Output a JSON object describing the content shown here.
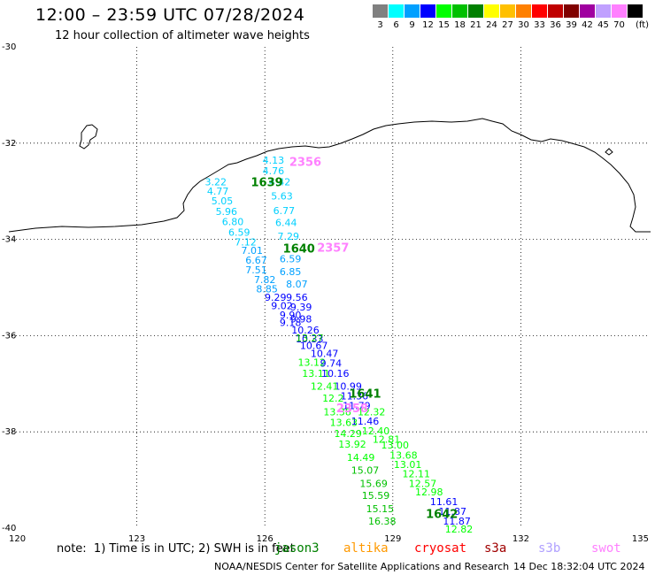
{
  "header": {
    "title": "12:00 – 23:59 UTC 07/28/2024",
    "subtitle": "12 hour collection of altimeter wave heights"
  },
  "color_scale": {
    "unit": "(ft)",
    "bins": [
      {
        "label": "3",
        "color": "#808080"
      },
      {
        "label": "6",
        "color": "#00ffff"
      },
      {
        "label": "9",
        "color": "#00a0ff"
      },
      {
        "label": "12",
        "color": "#0000ff"
      },
      {
        "label": "15",
        "color": "#00ff00"
      },
      {
        "label": "18",
        "color": "#00c000"
      },
      {
        "label": "21",
        "color": "#008000"
      },
      {
        "label": "24",
        "color": "#ffff00"
      },
      {
        "label": "27",
        "color": "#ffc000"
      },
      {
        "label": "30",
        "color": "#ff8000"
      },
      {
        "label": "33",
        "color": "#ff0000"
      },
      {
        "label": "36",
        "color": "#c00000"
      },
      {
        "label": "39",
        "color": "#800000"
      },
      {
        "label": "42",
        "color": "#a000a0"
      },
      {
        "label": "45",
        "color": "#c0a0ff"
      },
      {
        "label": "70",
        "color": "#ff80ff"
      },
      {
        "label": "",
        "color": "#000000"
      }
    ]
  },
  "map": {
    "lon_ticks": [
      {
        "label": "120",
        "lon": 120
      },
      {
        "label": "123",
        "lon": 123
      },
      {
        "label": "126",
        "lon": 126
      },
      {
        "label": "129",
        "lon": 129
      },
      {
        "label": "132",
        "lon": 132
      },
      {
        "label": "135",
        "lon": 135
      }
    ],
    "lat_ticks": [
      {
        "label": "-30",
        "lat": -30
      },
      {
        "label": "-32",
        "lat": -32
      },
      {
        "label": "-34",
        "lat": -34
      },
      {
        "label": "-36",
        "lat": -36
      },
      {
        "label": "-38",
        "lat": -38
      },
      {
        "label": "-40",
        "lat": -40
      }
    ],
    "time_labels": [
      {
        "text": "1639",
        "lon": 126.05,
        "lat": -32.8,
        "color": "#008000"
      },
      {
        "text": "2356",
        "lon": 126.95,
        "lat": -32.38,
        "color": "#ff80ff"
      },
      {
        "text": "1640",
        "lon": 126.8,
        "lat": -34.18,
        "color": "#008000"
      },
      {
        "text": "2357",
        "lon": 127.6,
        "lat": -34.16,
        "color": "#ff80ff"
      },
      {
        "text": "1641",
        "lon": 128.35,
        "lat": -37.2,
        "color": "#008000"
      },
      {
        "text": "2358",
        "lon": 128.05,
        "lat": -37.5,
        "color": "#ff80ff"
      },
      {
        "text": "1642",
        "lon": 130.15,
        "lat": -39.7,
        "color": "#008000"
      }
    ],
    "wave_heights": [
      {
        "text": "4.13",
        "lon": 126.2,
        "lat": -32.35,
        "color": "#00d0ff"
      },
      {
        "text": "4.76",
        "lon": 126.2,
        "lat": -32.57,
        "color": "#00d0ff"
      },
      {
        "text": "3.22",
        "lon": 124.85,
        "lat": -32.8,
        "color": "#00d0ff"
      },
      {
        "text": "4.42",
        "lon": 126.35,
        "lat": -32.8,
        "color": "#00d0ff"
      },
      {
        "text": "4.77",
        "lon": 124.9,
        "lat": -33.0,
        "color": "#00d0ff"
      },
      {
        "text": "5.63",
        "lon": 126.4,
        "lat": -33.1,
        "color": "#00d0ff"
      },
      {
        "text": "5.05",
        "lon": 125.0,
        "lat": -33.2,
        "color": "#00d0ff"
      },
      {
        "text": "6.77",
        "lon": 126.45,
        "lat": -33.4,
        "color": "#00d0ff"
      },
      {
        "text": "5.96",
        "lon": 125.1,
        "lat": -33.42,
        "color": "#00d0ff"
      },
      {
        "text": "6.80",
        "lon": 125.25,
        "lat": -33.63,
        "color": "#00d0ff"
      },
      {
        "text": "6.44",
        "lon": 126.5,
        "lat": -33.65,
        "color": "#00d0ff"
      },
      {
        "text": "6.59",
        "lon": 125.4,
        "lat": -33.85,
        "color": "#00d0ff"
      },
      {
        "text": "7.29",
        "lon": 126.55,
        "lat": -33.93,
        "color": "#00d0ff"
      },
      {
        "text": "7.12",
        "lon": 125.55,
        "lat": -34.05,
        "color": "#00d0ff"
      },
      {
        "text": "7.01",
        "lon": 125.7,
        "lat": -34.23,
        "color": "#00a0ff"
      },
      {
        "text": "6.59",
        "lon": 126.6,
        "lat": -34.4,
        "color": "#00a0ff"
      },
      {
        "text": "6.67",
        "lon": 125.8,
        "lat": -34.43,
        "color": "#00a0ff"
      },
      {
        "text": "7.51",
        "lon": 125.8,
        "lat": -34.63,
        "color": "#00a0ff"
      },
      {
        "text": "6.85",
        "lon": 126.6,
        "lat": -34.67,
        "color": "#00a0ff"
      },
      {
        "text": "7.82",
        "lon": 126.0,
        "lat": -34.83,
        "color": "#00a0ff"
      },
      {
        "text": "8.07",
        "lon": 126.75,
        "lat": -34.93,
        "color": "#00a0ff"
      },
      {
        "text": "8.85",
        "lon": 126.05,
        "lat": -35.03,
        "color": "#00a0ff"
      },
      {
        "text": "9.29",
        "lon": 126.25,
        "lat": -35.2,
        "color": "#0000ff"
      },
      {
        "text": "9.56",
        "lon": 126.75,
        "lat": -35.2,
        "color": "#0000ff"
      },
      {
        "text": "9.39",
        "lon": 126.85,
        "lat": -35.4,
        "color": "#0000ff"
      },
      {
        "text": "9.02",
        "lon": 126.4,
        "lat": -35.38,
        "color": "#0000ff"
      },
      {
        "text": "9.90",
        "lon": 126.6,
        "lat": -35.57,
        "color": "#0000ff"
      },
      {
        "text": "9.98",
        "lon": 126.85,
        "lat": -35.65,
        "color": "#0000ff"
      },
      {
        "text": "9.18",
        "lon": 126.6,
        "lat": -35.73,
        "color": "#0000ff"
      },
      {
        "text": "10.26",
        "lon": 126.95,
        "lat": -35.88,
        "color": "#0000ff"
      },
      {
        "text": "10.33",
        "lon": 127.05,
        "lat": -36.07,
        "color": "#0000ff"
      },
      {
        "text": "13.27",
        "lon": 127.05,
        "lat": -36.05,
        "color": "#00c000"
      },
      {
        "text": "10.67",
        "lon": 127.15,
        "lat": -36.2,
        "color": "#0000ff"
      },
      {
        "text": "10.47",
        "lon": 127.4,
        "lat": -36.37,
        "color": "#0000ff"
      },
      {
        "text": "13.12",
        "lon": 127.1,
        "lat": -36.55,
        "color": "#00ff00"
      },
      {
        "text": "9.74",
        "lon": 127.55,
        "lat": -36.57,
        "color": "#0000ff"
      },
      {
        "text": "13.11",
        "lon": 127.2,
        "lat": -36.78,
        "color": "#00ff00"
      },
      {
        "text": "10.16",
        "lon": 127.65,
        "lat": -36.78,
        "color": "#0000ff"
      },
      {
        "text": "10.99",
        "lon": 127.95,
        "lat": -37.05,
        "color": "#0000ff"
      },
      {
        "text": "12.41",
        "lon": 127.4,
        "lat": -37.05,
        "color": "#00ff00"
      },
      {
        "text": "11.36",
        "lon": 128.1,
        "lat": -37.25,
        "color": "#0000ff"
      },
      {
        "text": "12.2",
        "lon": 127.6,
        "lat": -37.3,
        "color": "#00ff00"
      },
      {
        "text": "11.79",
        "lon": 128.15,
        "lat": -37.45,
        "color": "#0000ff"
      },
      {
        "text": "12.32",
        "lon": 128.5,
        "lat": -37.58,
        "color": "#00ff00"
      },
      {
        "text": "13.38",
        "lon": 127.7,
        "lat": -37.58,
        "color": "#00ff00"
      },
      {
        "text": "11.46",
        "lon": 128.35,
        "lat": -37.78,
        "color": "#0000ff"
      },
      {
        "text": "13.63",
        "lon": 127.85,
        "lat": -37.8,
        "color": "#00ff00"
      },
      {
        "text": "12.40",
        "lon": 128.6,
        "lat": -37.98,
        "color": "#00ff00"
      },
      {
        "text": "14.29",
        "lon": 127.95,
        "lat": -38.03,
        "color": "#00ff00"
      },
      {
        "text": "12.81",
        "lon": 128.85,
        "lat": -38.15,
        "color": "#00ff00"
      },
      {
        "text": "13.92",
        "lon": 128.05,
        "lat": -38.25,
        "color": "#00ff00"
      },
      {
        "text": "13.00",
        "lon": 129.05,
        "lat": -38.27,
        "color": "#00ff00"
      },
      {
        "text": "13.68",
        "lon": 129.25,
        "lat": -38.48,
        "color": "#00ff00"
      },
      {
        "text": "14.49",
        "lon": 128.25,
        "lat": -38.53,
        "color": "#00ff00"
      },
      {
        "text": "13.01",
        "lon": 129.35,
        "lat": -38.68,
        "color": "#00ff00"
      },
      {
        "text": "15.07",
        "lon": 128.35,
        "lat": -38.8,
        "color": "#00c000"
      },
      {
        "text": "12.11",
        "lon": 129.55,
        "lat": -38.87,
        "color": "#00ff00"
      },
      {
        "text": "15.69",
        "lon": 128.55,
        "lat": -39.07,
        "color": "#00c000"
      },
      {
        "text": "12.57",
        "lon": 129.7,
        "lat": -39.07,
        "color": "#00ff00"
      },
      {
        "text": "12.98",
        "lon": 129.85,
        "lat": -39.25,
        "color": "#00ff00"
      },
      {
        "text": "15.59",
        "lon": 128.6,
        "lat": -39.32,
        "color": "#00c000"
      },
      {
        "text": "11.61",
        "lon": 130.2,
        "lat": -39.45,
        "color": "#0000ff"
      },
      {
        "text": "15.15",
        "lon": 128.7,
        "lat": -39.6,
        "color": "#00c000"
      },
      {
        "text": "11.87",
        "lon": 130.4,
        "lat": -39.65,
        "color": "#0000ff"
      },
      {
        "text": "16.38",
        "lon": 128.75,
        "lat": -39.85,
        "color": "#00c000"
      },
      {
        "text": "11.87",
        "lon": 130.5,
        "lat": -39.85,
        "color": "#0000ff"
      },
      {
        "text": "12.82",
        "lon": 130.55,
        "lat": -40.02,
        "color": "#00ff00"
      }
    ]
  },
  "footer": {
    "note": "note:  1) Time is in UTC; 2) SWH is in feet",
    "missions": [
      {
        "name": "jason3",
        "color": "#008000"
      },
      {
        "name": "altika",
        "color": "#ff9900"
      },
      {
        "name": "cryosat",
        "color": "#ff0000"
      },
      {
        "name": "s3a",
        "color": "#a00000"
      },
      {
        "name": "s3b",
        "color": "#b0a0ff"
      },
      {
        "name": "swot",
        "color": "#ff80ff"
      }
    ],
    "credit": "NOAA/NESDIS Center for Satellite Applications and Research",
    "timestamp": "14 Dec 18:32:04 UTC 2024"
  }
}
